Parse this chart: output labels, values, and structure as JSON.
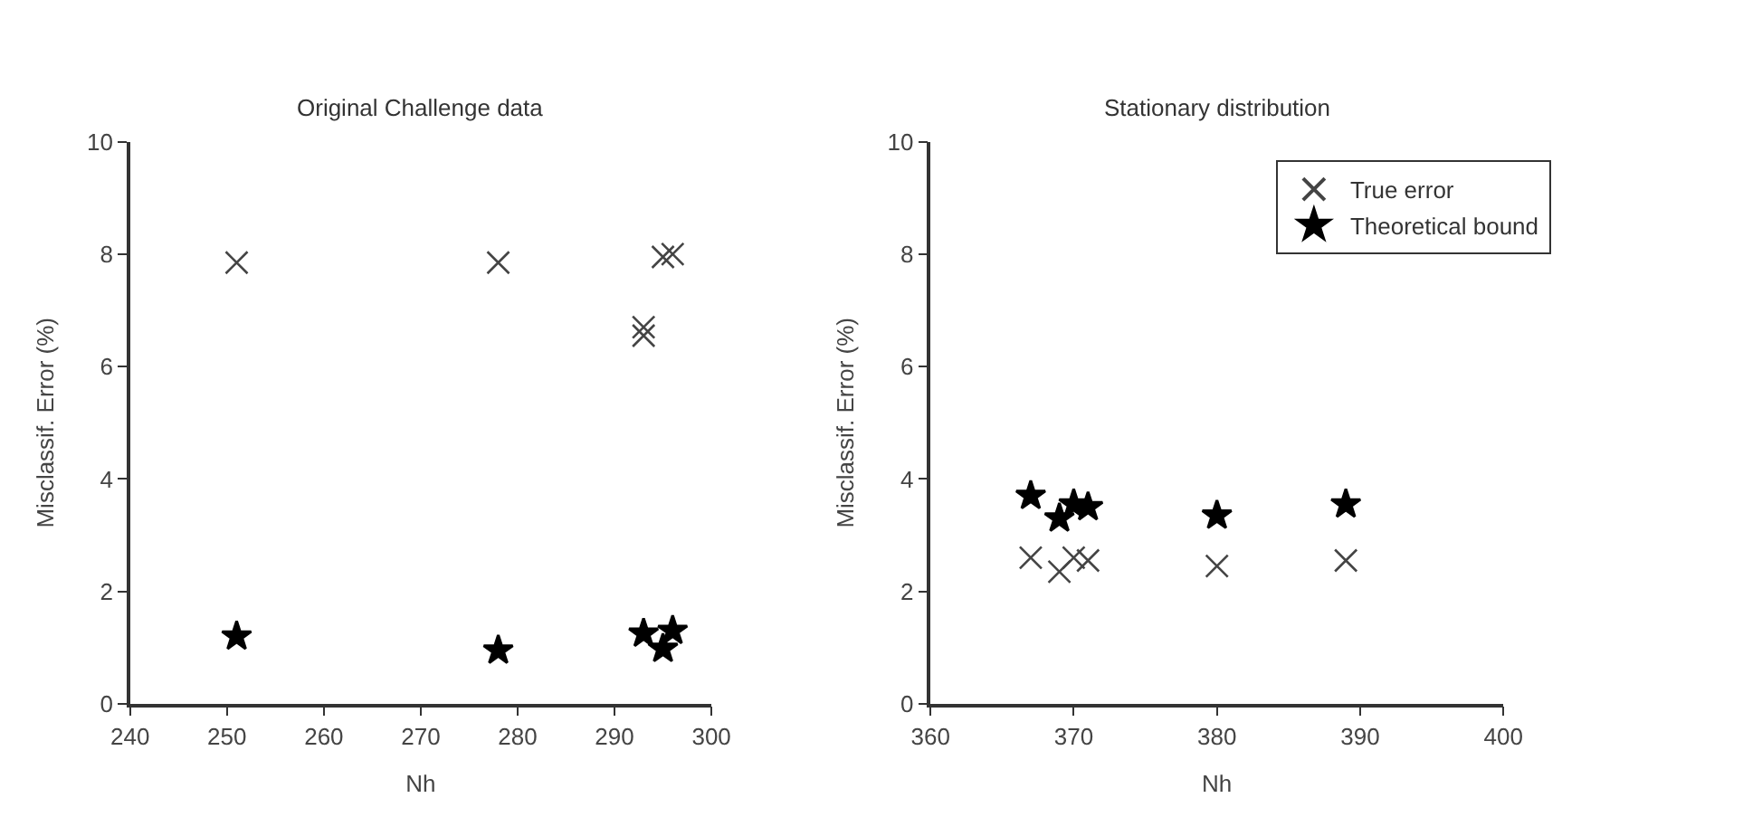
{
  "chart_data": [
    {
      "type": "scatter",
      "title": "Original Challenge data",
      "xlabel": "Nh",
      "ylabel": "Misclassif. Error (%)",
      "xlim": [
        240,
        300
      ],
      "xticks": [
        240,
        250,
        260,
        270,
        280,
        290,
        300
      ],
      "ylim": [
        0,
        10
      ],
      "yticks": [
        0,
        2,
        4,
        6,
        8,
        10
      ],
      "legend": false,
      "series": [
        {
          "color": "#444444",
          "marker": "cross",
          "x": [
            251,
            278,
            293,
            293,
            295,
            296
          ],
          "values": [
            7.85,
            7.85,
            6.7,
            6.55,
            7.95,
            8.0
          ]
        },
        {
          "color": "#000000",
          "marker": "star",
          "x": [
            251,
            278,
            293,
            295,
            296
          ],
          "values": [
            1.2,
            0.95,
            1.25,
            0.98,
            1.3
          ]
        }
      ]
    },
    {
      "type": "scatter",
      "title": "Stationary distribution",
      "xlabel": "Nh",
      "ylabel": "Misclassif. Error (%)",
      "xlim": [
        360,
        400
      ],
      "xticks": [
        360,
        370,
        380,
        390,
        400
      ],
      "ylim": [
        0,
        10
      ],
      "yticks": [
        0,
        2,
        4,
        6,
        8,
        10
      ],
      "legend": "top right",
      "series": [
        {
          "name": "True error",
          "color": "#444444",
          "marker": "cross",
          "x": [
            367,
            369,
            370,
            371,
            380,
            389
          ],
          "values": [
            2.6,
            2.35,
            2.6,
            2.55,
            2.45,
            2.55
          ]
        },
        {
          "name": "Theoretical bound",
          "color": "#000000",
          "marker": "star",
          "x": [
            367,
            369,
            370,
            371,
            380,
            389
          ],
          "values": [
            3.7,
            3.3,
            3.55,
            3.5,
            3.35,
            3.55
          ]
        }
      ]
    }
  ]
}
